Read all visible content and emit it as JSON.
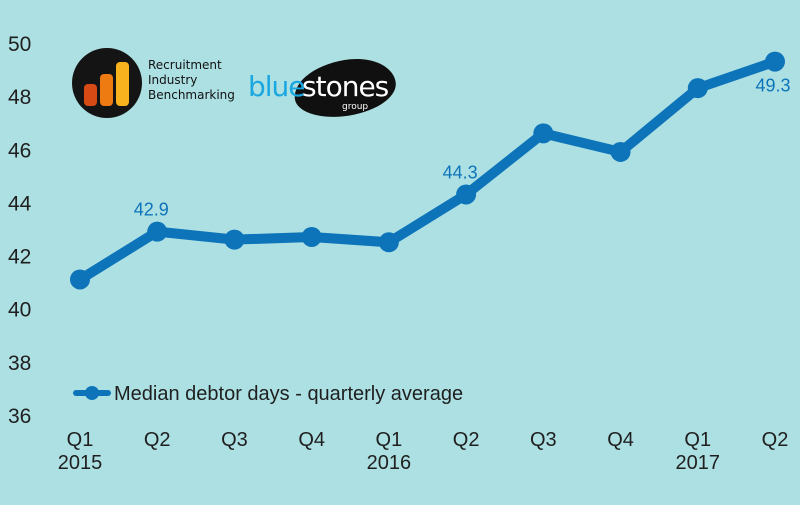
{
  "logos": {
    "rib": [
      "Recruitment",
      "Industry",
      "Benchmarking"
    ],
    "bluestones": {
      "part1": "blue",
      "part2": "stones",
      "sub": "group"
    }
  },
  "colors": {
    "background": "#ade0e3",
    "series": "#0d74ba",
    "axis_text": "#1f1f1f"
  },
  "chart_data": {
    "type": "line",
    "categories": [
      "Q1",
      "Q2",
      "Q3",
      "Q4",
      "Q1",
      "Q2",
      "Q3",
      "Q4",
      "Q1",
      "Q2"
    ],
    "year_labels": [
      {
        "category_index": 0,
        "label": "2015"
      },
      {
        "category_index": 4,
        "label": "2016"
      },
      {
        "category_index": 8,
        "label": "2017"
      }
    ],
    "series": [
      {
        "name": "Median debtor days - quarterly average",
        "values": [
          41.1,
          42.9,
          42.6,
          42.7,
          42.5,
          44.3,
          46.6,
          45.9,
          48.3,
          49.3
        ]
      }
    ],
    "data_labels": [
      {
        "index": 1,
        "text": "42.9"
      },
      {
        "index": 5,
        "text": "44.3"
      },
      {
        "index": 9,
        "text": "49.3"
      }
    ],
    "ylim": [
      36,
      50
    ],
    "yticks": [
      36,
      38,
      40,
      42,
      44,
      46,
      48,
      50
    ],
    "grid": false,
    "legend_position": "bottom-left",
    "title": "",
    "xlabel": "",
    "ylabel": ""
  }
}
